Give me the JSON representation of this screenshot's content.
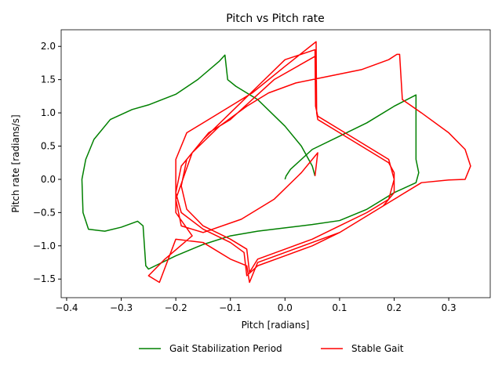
{
  "chart_data": {
    "type": "line",
    "title": "Pitch vs Pitch rate",
    "x_label": "Pitch [radians]",
    "y_label": "Pitch rate [radians/s]",
    "xlim": [
      -0.41,
      0.376
    ],
    "ylim": [
      -1.78,
      2.25
    ],
    "xticks": [
      {
        "value": -0.4,
        "label": "−0.4"
      },
      {
        "value": -0.3,
        "label": "−0.3"
      },
      {
        "value": -0.2,
        "label": "−0.2"
      },
      {
        "value": -0.1,
        "label": "−0.1"
      },
      {
        "value": 0,
        "label": "0.0"
      },
      0.1,
      0.2,
      0.3
    ],
    "yticks": [
      {
        "value": -1.5,
        "label": "−1.5"
      },
      {
        "value": -1,
        "label": "−1.0"
      },
      {
        "value": -0.5,
        "label": "−0.5"
      },
      {
        "value": 0,
        "label": "0.0"
      },
      0.5,
      {
        "value": 1,
        "label": "1.0"
      },
      1.5,
      {
        "value": 2,
        "label": "2.0"
      }
    ],
    "legend": "below",
    "series": [
      {
        "name": "Gait Stabilization Period",
        "color": "#008000",
        "x": [
          0,
          0.002,
          0.01,
          0.05,
          0.1,
          0.15,
          0.2,
          0.24,
          0.24,
          0.245,
          0.24,
          0.2,
          0.15,
          0.1,
          0.05,
          0,
          -0.05,
          -0.1,
          -0.15,
          -0.2,
          -0.25,
          -0.255,
          -0.26,
          -0.27,
          -0.3,
          -0.33,
          -0.36,
          -0.37,
          -0.372,
          -0.365,
          -0.35,
          -0.32,
          -0.28,
          -0.25,
          -0.2,
          -0.16,
          -0.12,
          -0.11,
          -0.105,
          -0.09,
          -0.05,
          0,
          0.03,
          0.05,
          0.055
        ],
        "values": [
          0,
          0.05,
          0.15,
          0.45,
          0.65,
          0.85,
          1.1,
          1.27,
          0.3,
          0.1,
          -0.05,
          -0.2,
          -0.45,
          -0.62,
          -0.68,
          -0.73,
          -0.78,
          -0.85,
          -0.98,
          -1.15,
          -1.35,
          -1.3,
          -0.7,
          -0.63,
          -0.72,
          -0.78,
          -0.75,
          -0.5,
          0,
          0.3,
          0.6,
          0.9,
          1.05,
          1.12,
          1.28,
          1.5,
          1.78,
          1.87,
          1.5,
          1.4,
          1.2,
          0.8,
          0.5,
          0.2,
          0.05
        ]
      },
      {
        "name": "Stable Gait",
        "color": "#ff0000",
        "x": [
          0.055,
          0.06,
          0.03,
          -0.02,
          -0.08,
          -0.15,
          -0.19,
          -0.2,
          -0.17,
          -0.12,
          -0.07,
          -0.03,
          0.02,
          0.08,
          0.14,
          0.19,
          0.205,
          0.21,
          0.215,
          0.25,
          0.3,
          0.33,
          0.34,
          0.33,
          0.3,
          0.25,
          0.2,
          0.1,
          0,
          -0.05,
          -0.065,
          -0.07,
          -0.1,
          -0.15,
          -0.2,
          -0.23,
          -0.25,
          -0.22,
          -0.17,
          -0.2,
          -0.2,
          -0.18,
          -0.12,
          -0.06,
          0,
          0.057,
          0.058,
          0.06,
          0.1,
          0.15,
          0.19,
          0.2,
          0.2,
          0.18,
          0.15,
          0.1,
          0.05,
          0,
          -0.05,
          -0.07,
          -0.075,
          -0.1,
          -0.15,
          -0.19,
          -0.2,
          -0.19,
          -0.15,
          -0.1,
          -0.05,
          0,
          0.055,
          0.056,
          0.06,
          0.1,
          0.15,
          0.19,
          0.2,
          0.19,
          0.15,
          0.1,
          0.05,
          0,
          -0.05,
          -0.065,
          -0.07,
          -0.1,
          -0.15,
          -0.18,
          -0.19,
          -0.18,
          -0.14,
          -0.1,
          -0.06,
          -0.02,
          0.055
        ],
        "values": [
          0.05,
          0.4,
          0.1,
          -0.3,
          -0.6,
          -0.8,
          -0.7,
          -0.3,
          0.4,
          0.8,
          1.1,
          1.3,
          1.45,
          1.55,
          1.65,
          1.8,
          1.88,
          1.88,
          1.2,
          1.0,
          0.7,
          0.45,
          0.2,
          0,
          -0.01,
          -0.05,
          -0.3,
          -0.8,
          -1.1,
          -1.25,
          -1.55,
          -1.3,
          -1.2,
          -0.95,
          -0.9,
          -1.55,
          -1.45,
          -1.2,
          -0.85,
          -0.5,
          0.3,
          0.7,
          1.0,
          1.3,
          1.7,
          2.07,
          1.0,
          0.9,
          0.7,
          0.45,
          0.25,
          0.1,
          -0.2,
          -0.4,
          -0.55,
          -0.8,
          -1.0,
          -1.15,
          -1.3,
          -1.45,
          -1.1,
          -0.95,
          -0.75,
          -0.5,
          -0.2,
          0.2,
          0.6,
          1.0,
          1.4,
          1.8,
          1.95,
          1.1,
          0.95,
          0.75,
          0.5,
          0.3,
          0.0,
          -0.3,
          -0.5,
          -0.7,
          -0.9,
          -1.05,
          -1.2,
          -1.4,
          -1.05,
          -0.9,
          -0.7,
          -0.45,
          -0.1,
          0.3,
          0.7,
          0.9,
          1.2,
          1.5,
          1.85
        ]
      }
    ]
  }
}
